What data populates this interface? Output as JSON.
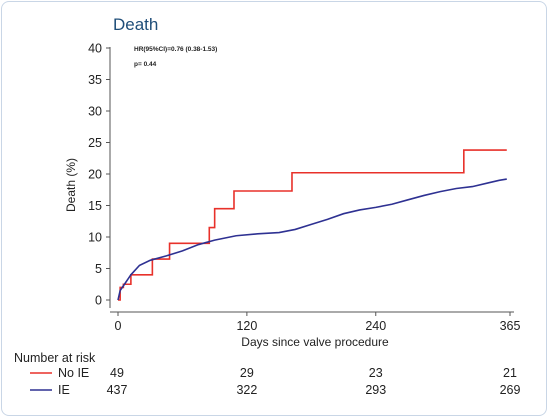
{
  "chart_data": {
    "type": "line",
    "title": "Death",
    "annotations": [
      "HR(95%CI)=0.76 (0.38-1.53)",
      "p= 0.44"
    ],
    "xlabel": "Days since valve procedure",
    "ylabel": "Death (%)",
    "xlim": [
      0,
      365
    ],
    "ylim": [
      0,
      40
    ],
    "xticks": [
      0,
      120,
      240,
      365
    ],
    "yticks": [
      0,
      5,
      10,
      15,
      20,
      25,
      30,
      35,
      40
    ],
    "series": [
      {
        "name": "No IE",
        "color": "#e8312a",
        "step": true,
        "x": [
          0,
          2,
          5,
          12,
          32,
          48,
          85,
          90,
          108,
          162,
          322,
          362
        ],
        "y": [
          0,
          2,
          2.5,
          4,
          6.5,
          9,
          11.5,
          14.5,
          17.3,
          20.2,
          23.8,
          23.8
        ]
      },
      {
        "name": "IE",
        "color": "#2e3192",
        "step": false,
        "x": [
          0,
          2,
          6,
          12,
          20,
          30,
          45,
          60,
          75,
          90,
          110,
          130,
          150,
          165,
          180,
          195,
          210,
          225,
          240,
          255,
          270,
          285,
          300,
          315,
          330,
          345,
          355,
          362
        ],
        "y": [
          0,
          1.5,
          2.5,
          4,
          5.5,
          6.3,
          7,
          7.8,
          8.8,
          9.5,
          10.2,
          10.5,
          10.7,
          11.2,
          12,
          12.8,
          13.7,
          14.3,
          14.7,
          15.2,
          15.9,
          16.6,
          17.2,
          17.7,
          18,
          18.6,
          19,
          19.2
        ]
      }
    ],
    "risk_table": {
      "title": "Number at risk",
      "timepoints": [
        0,
        120,
        240,
        365
      ],
      "rows": [
        {
          "name": "No IE",
          "color": "#e8312a",
          "counts": [
            "49",
            "29",
            "23",
            "21"
          ]
        },
        {
          "name": "IE",
          "color": "#2e3192",
          "counts": [
            "437",
            "322",
            "293",
            "269"
          ]
        }
      ]
    }
  }
}
